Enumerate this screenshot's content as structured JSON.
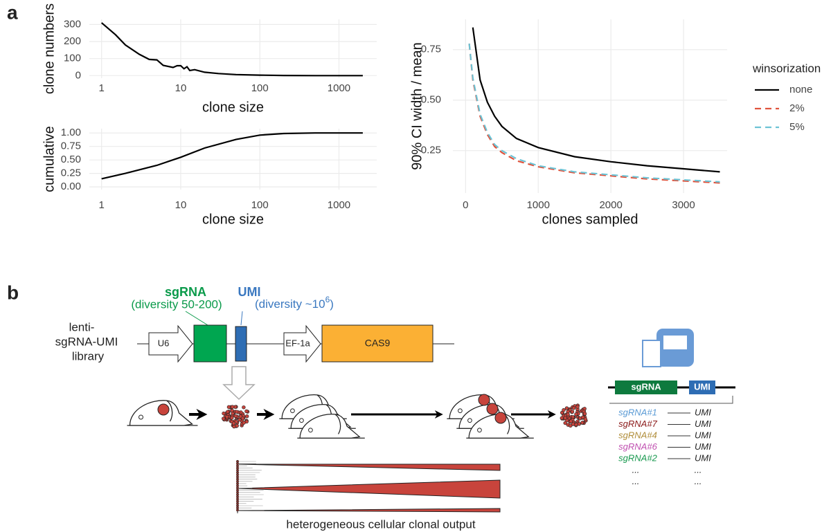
{
  "panel_labels": [
    "a",
    "b"
  ],
  "chart_data": [
    {
      "type": "line",
      "xlabel": "clone size",
      "ylabel": "clone numbers",
      "log_x": true,
      "color": "#000000",
      "x": [
        1,
        1.5,
        2,
        3,
        4,
        5,
        6,
        8,
        9,
        10,
        11,
        12,
        13,
        15,
        20,
        30,
        50,
        100,
        200,
        500,
        2000
      ],
      "values": [
        310,
        240,
        180,
        125,
        95,
        92,
        60,
        48,
        58,
        58,
        40,
        52,
        30,
        35,
        20,
        12,
        6,
        3,
        1,
        0,
        0
      ],
      "xlim": [
        0.7,
        3000
      ],
      "ylim": [
        -15,
        330
      ],
      "xticks": [
        1,
        10,
        100,
        1000
      ],
      "yticks": [
        0,
        100,
        200,
        300
      ],
      "grid": true
    },
    {
      "type": "line",
      "xlabel": "clone size",
      "ylabel": "cumulative",
      "log_x": true,
      "color": "#000000",
      "x": [
        1,
        2,
        5,
        10,
        20,
        50,
        100,
        200,
        500,
        2000
      ],
      "values": [
        0.15,
        0.25,
        0.4,
        0.55,
        0.72,
        0.88,
        0.96,
        0.99,
        1.0,
        1.0
      ],
      "xlim": [
        0.7,
        3000
      ],
      "ylim": [
        -0.05,
        1.08
      ],
      "xticks": [
        1,
        10,
        100,
        1000
      ],
      "yticks": [
        {
          "value": 0,
          "label": "0.00"
        },
        0.25,
        {
          "value": 0.5,
          "label": "0.50"
        },
        0.75,
        {
          "value": 1,
          "label": "1.00"
        }
      ],
      "grid": true
    },
    {
      "type": "line",
      "xlabel": "clones sampled",
      "ylabel": "90% CI width / mean",
      "legend_title": "winsorization",
      "legend_position": "right",
      "series": [
        {
          "name": "none",
          "color": "#000000",
          "linestyle": "solid",
          "x": [
            100,
            200,
            300,
            400,
            500,
            700,
            1000,
            1500,
            2000,
            2500,
            3000,
            3500
          ],
          "values": [
            0.86,
            0.6,
            0.49,
            0.42,
            0.37,
            0.31,
            0.265,
            0.22,
            0.195,
            0.175,
            0.16,
            0.145
          ]
        },
        {
          "name": "2%",
          "color": "#e0533c",
          "linestyle": "dashed",
          "x": [
            50,
            100,
            200,
            300,
            400,
            500,
            700,
            1000,
            1500,
            2000,
            2500,
            3000,
            3500
          ],
          "values": [
            0.78,
            0.6,
            0.42,
            0.33,
            0.27,
            0.24,
            0.2,
            0.17,
            0.14,
            0.125,
            0.11,
            0.1,
            0.09
          ]
        },
        {
          "name": "5%",
          "color": "#6cc3d5",
          "linestyle": "dashed",
          "x": [
            50,
            100,
            200,
            300,
            400,
            500,
            700,
            1000,
            1500,
            2000,
            2500,
            3000,
            3500
          ],
          "values": [
            0.78,
            0.61,
            0.43,
            0.34,
            0.28,
            0.25,
            0.21,
            0.175,
            0.145,
            0.13,
            0.115,
            0.105,
            0.095
          ]
        }
      ],
      "xlim": [
        -175,
        3600
      ],
      "ylim": [
        0.04,
        0.9
      ],
      "xticks": [
        0,
        1000,
        2000,
        3000
      ],
      "yticks": [
        0.25,
        {
          "value": 0.5,
          "label": "0.50"
        },
        0.75
      ],
      "grid": true
    }
  ],
  "diagram": {
    "sgrna_title": "sgRNA",
    "sgrna_diversity": "(diversity 50-200)",
    "umi_title": "UMI",
    "umi_diversity": {
      "text": "(diversity ~10",
      "superscript": "6",
      "close": ")"
    },
    "library_label": [
      "lenti-",
      "sgRNA-UMI",
      "library"
    ],
    "promoter_1": "U6",
    "promoter_2": "EF-1a",
    "cas9": "CAS9",
    "read_sgrna": "sgRNA",
    "read_umi": "UMI",
    "rows": [
      {
        "sgrna": "sgRNA#1",
        "umi": "UMI"
      },
      {
        "sgrna": "sgRNA#7",
        "umi": "UMI"
      },
      {
        "sgrna": "sgRNA#4",
        "umi": "UMI"
      },
      {
        "sgrna": "sgRNA#6",
        "umi": "UMI"
      },
      {
        "sgrna": "sgRNA#2",
        "umi": "UMI"
      }
    ],
    "ellipsis_rows": [
      [
        "...",
        "..."
      ],
      [
        "...",
        "..."
      ]
    ],
    "caption": "heterogeneous cellular clonal output"
  }
}
